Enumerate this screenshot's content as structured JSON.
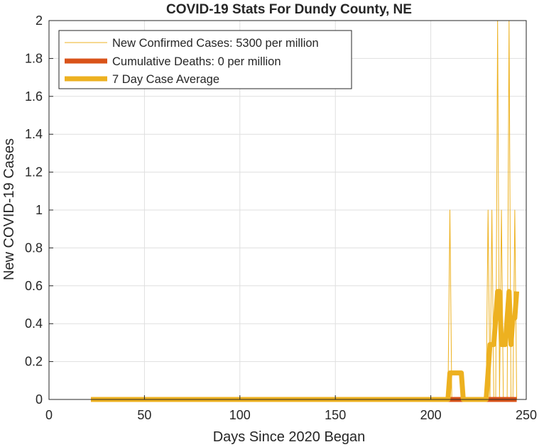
{
  "chart_data": {
    "type": "line",
    "title": "COVID-19 Stats For Dundy County, NE",
    "xlabel": "Days Since 2020 Began",
    "ylabel": "New COVID-19 Cases",
    "xlim": [
      0,
      250
    ],
    "ylim": [
      0,
      2
    ],
    "xticks": [
      0,
      50,
      100,
      150,
      200,
      250
    ],
    "yticks": [
      0,
      0.2,
      0.4,
      0.6,
      0.8,
      1,
      1.2,
      1.4,
      1.6,
      1.8,
      2
    ],
    "xtick_labels": [
      "0",
      "50",
      "100",
      "150",
      "200",
      "250"
    ],
    "ytick_labels": [
      "0",
      "0.2",
      "0.4",
      "0.6",
      "0.8",
      "1",
      "1.2",
      "1.4",
      "1.6",
      "1.8",
      "2"
    ],
    "grid": true,
    "legend_position": "top-left",
    "series": [
      {
        "name": "New Confirmed Cases: 5300 per million",
        "color": "#EDB120",
        "style": "thin",
        "x": [
          22,
          209,
          210,
          211,
          229,
          230,
          231,
          232,
          233,
          234,
          235,
          236,
          237,
          238,
          239,
          240,
          241,
          242,
          243,
          244,
          245
        ],
        "y": [
          0,
          0,
          1,
          0,
          0,
          1,
          0,
          1,
          0,
          0,
          2,
          0,
          1,
          0,
          0,
          0,
          2,
          0,
          0,
          1,
          0
        ]
      },
      {
        "name": "Cumulative Deaths: 0 per million",
        "color": "#D95319",
        "style": "thick",
        "x": [
          22,
          245
        ],
        "y": [
          0,
          0
        ]
      },
      {
        "name": "7 Day Case Average",
        "color": "#EDB120",
        "style": "thick",
        "x": [
          22,
          209,
          210,
          216,
          217,
          229,
          230,
          231,
          232,
          233,
          234,
          235,
          236,
          237,
          238,
          239,
          240,
          241,
          242,
          243,
          244,
          245
        ],
        "y": [
          0,
          0,
          0.14,
          0.14,
          0,
          0,
          0.14,
          0.29,
          0.29,
          0.29,
          0.43,
          0.57,
          0.57,
          0.29,
          0.29,
          0.29,
          0.43,
          0.57,
          0.29,
          0.43,
          0.43,
          0.57
        ]
      }
    ]
  }
}
